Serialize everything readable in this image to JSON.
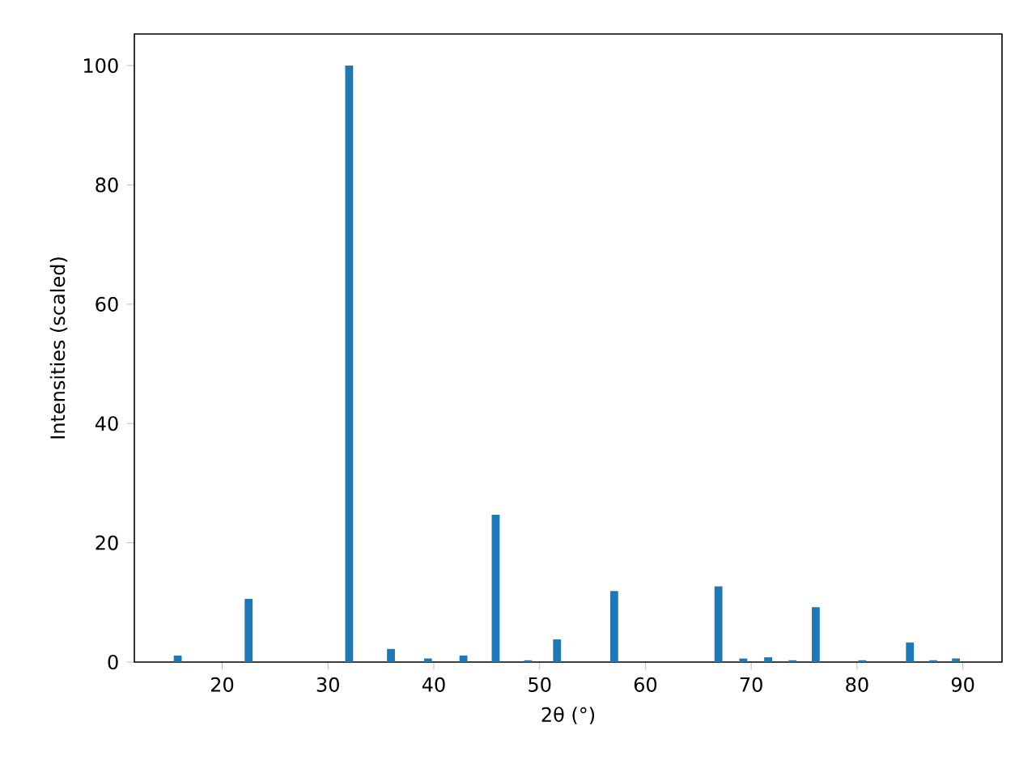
{
  "chart_data": {
    "type": "bar",
    "xlabel": "2θ (°)",
    "ylabel": "Intensities (scaled)",
    "x": [
      15.8,
      22.5,
      32.0,
      35.95,
      39.45,
      42.8,
      45.85,
      48.9,
      51.65,
      57.05,
      66.9,
      69.25,
      71.6,
      73.9,
      76.1,
      80.5,
      85.0,
      87.2,
      89.35
    ],
    "values": [
      1.1,
      10.6,
      100,
      2.2,
      0.6,
      1.1,
      24.7,
      0.3,
      3.8,
      11.9,
      12.7,
      0.6,
      0.8,
      0.3,
      9.2,
      0.3,
      3.3,
      0.3,
      0.6
    ],
    "color": "#1f77b4",
    "xlim": [
      11.7,
      93.7
    ],
    "ylim": [
      0,
      105.3
    ],
    "xticks": [
      20,
      30,
      40,
      50,
      60,
      70,
      80,
      90
    ],
    "yticks": [
      0,
      20,
      40,
      60,
      80,
      100
    ],
    "grid": false
  }
}
